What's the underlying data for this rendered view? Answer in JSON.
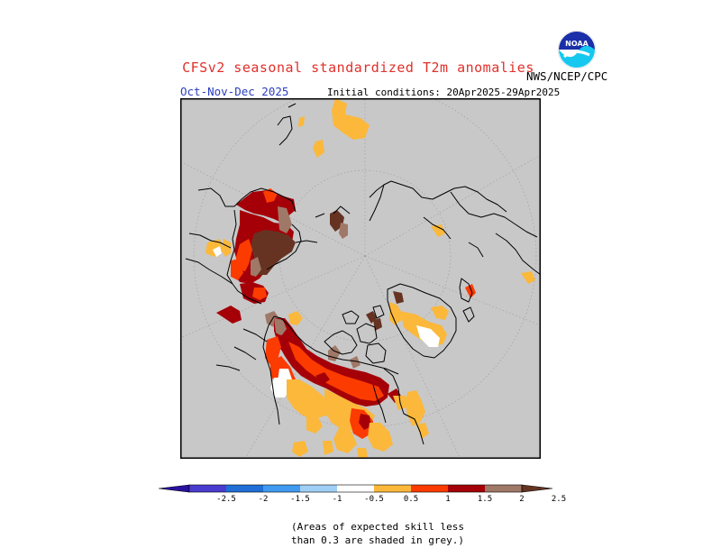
{
  "title": "CFSv2 seasonal standardized T2m anomalies",
  "period": "Oct-Nov-Dec 2025",
  "initial_conditions": "Initial conditions: 20Apr2025-29Apr2025",
  "agency": "NWS/NCEP/CPC",
  "logo_text": "NOAA",
  "colors": {
    "title": "#e0302a",
    "period": "#2a3fc0",
    "grey_mask": "#c8c8c8",
    "land_outline": "#000000"
  },
  "legend": {
    "ticks": [
      "-2.5",
      "-2",
      "-1.5",
      "-1",
      "-0.5",
      "0.5",
      "1",
      "1.5",
      "2",
      "2.5"
    ],
    "colors": [
      "#2a10a0",
      "#4a3ccf",
      "#1f6fd6",
      "#3f9af0",
      "#a0cff5",
      "#ffffff",
      "#fbb83a",
      "#fb3b00",
      "#a50008",
      "#a07868",
      "#663322"
    ]
  },
  "note": {
    "line1": "(Areas of expected skill less",
    "line2": "than 0.3 are shaded in grey.)"
  }
}
